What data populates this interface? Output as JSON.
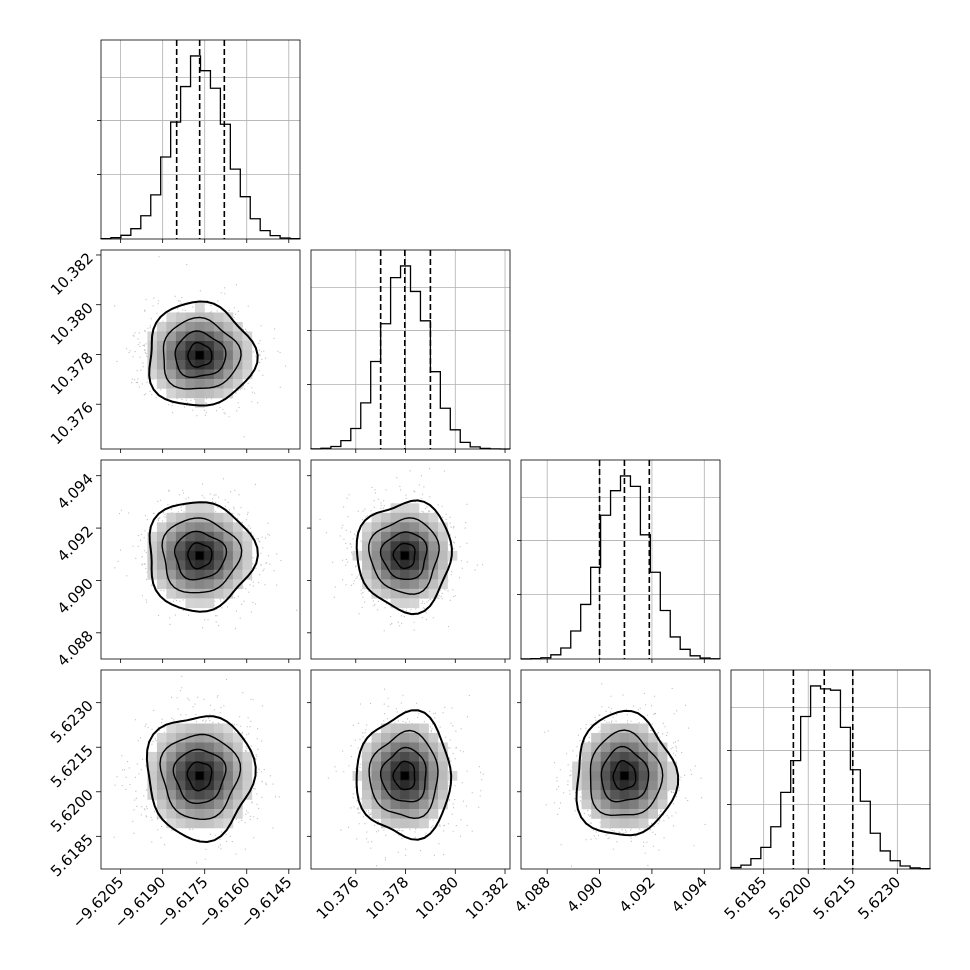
{
  "chart_data": {
    "type": "scatter",
    "title": "",
    "plot_kind": "corner plot (posterior samples)",
    "grid": true,
    "quantile_lines": "dashed vertical lines at 16%, 50%, 84% quantiles",
    "parameters": [
      {
        "index": 0,
        "label": "",
        "range": [
          -9.6212,
          -9.6141
        ],
        "ticks": [
          -9.6205,
          -9.619,
          -9.6175,
          -9.616,
          -9.6145
        ],
        "tick_labels": [
          "−9.6205",
          "−9.6190",
          "−9.6175",
          "−9.6160",
          "−9.6145"
        ],
        "mean": -9.61768,
        "sd": 0.00095,
        "quantiles": [
          -9.6185,
          -9.61768,
          -9.6168
        ]
      },
      {
        "index": 1,
        "label": "",
        "range": [
          10.3742,
          10.3822
        ],
        "ticks": [
          10.376,
          10.378,
          10.38,
          10.382
        ],
        "tick_labels": [
          "10.376",
          "10.378",
          "10.380",
          "10.382"
        ],
        "mean": 10.37797,
        "sd": 0.00095,
        "quantiles": [
          10.377,
          10.37797,
          10.379
        ]
      },
      {
        "index": 2,
        "label": "",
        "range": [
          4.087,
          4.0946
        ],
        "ticks": [
          4.088,
          4.09,
          4.092,
          4.094
        ],
        "tick_labels": [
          "4.088",
          "4.090",
          "4.092",
          "4.094"
        ],
        "mean": 4.09095,
        "sd": 0.00095,
        "quantiles": [
          4.09,
          4.09095,
          4.0919
        ]
      },
      {
        "index": 3,
        "label": "",
        "range": [
          5.6174,
          5.6241
        ],
        "ticks": [
          5.6185,
          5.62,
          5.6215,
          5.623
        ],
        "tick_labels": [
          "5.6185",
          "5.6200",
          "5.6215",
          "5.6230"
        ],
        "mean": 5.62054,
        "sd": 0.00095,
        "quantiles": [
          5.6195,
          5.62054,
          5.6215
        ]
      }
    ],
    "colors": {
      "ink": "#000000",
      "points": "#8c8c8c",
      "grid": "#b0b0b0"
    }
  }
}
